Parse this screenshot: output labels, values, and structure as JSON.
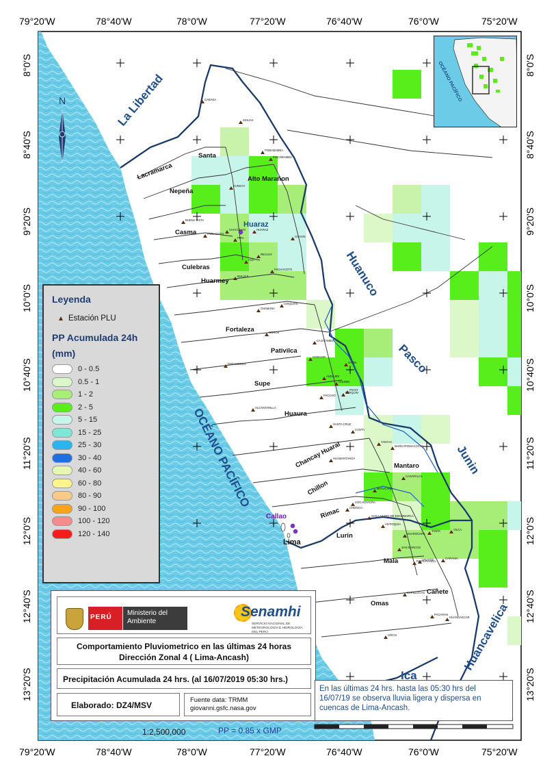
{
  "coordinates": {
    "lon_labels": [
      "79°20'W",
      "78°40'W",
      "78°0'W",
      "77°20'W",
      "76°40'W",
      "76°0'W",
      "75°20'W"
    ],
    "lat_labels": [
      "8°0'S",
      "8°40'S",
      "9°20'S",
      "10°0'S",
      "10°40'S",
      "11°20'S",
      "12°0'S",
      "12°40'S",
      "13°20'S"
    ]
  },
  "regions": {
    "la_libertad": "La Libertad",
    "huanuco": "Huanuco",
    "pasco": "Pasco",
    "junin": "Junin",
    "huancavelica": "Huancavelica",
    "ica": "Ica",
    "ocean": "OCÉANO PACÍFICO"
  },
  "north_label": "N",
  "basins": {
    "santa": "Santa",
    "lacramarca": "Lacramarca",
    "nepena": "Nepeña",
    "alto_maranon": "Alto Marañon",
    "casma": "Casma",
    "huaraz": "Huaraz",
    "culebras": "Culebras",
    "huarmey": "Huarmey",
    "fortaleza": "Fortaleza",
    "pativilca": "Pativilca",
    "supe": "Supe",
    "huaura": "Huaura",
    "chancay": "Chancay Huaral",
    "chillon": "Chillon",
    "rimac": "Rimac",
    "lurin": "Lurin",
    "mantaro": "Mantaro",
    "mala": "Mala",
    "canete": "Cañete",
    "omas": "Omas",
    "callao": "Callao",
    "lima": "Lima"
  },
  "legend": {
    "title": "Leyenda",
    "station_label": "Estación PLU",
    "pp_title_line1": "PP Acumulada 24h",
    "pp_title_line2": "(mm)",
    "classes": [
      {
        "label": "0 - 0.5",
        "color": "#ffffff"
      },
      {
        "label": "0.5 - 1",
        "color": "#dcf7c8"
      },
      {
        "label": "1 - 2",
        "color": "#a6ee78"
      },
      {
        "label": "2 - 5",
        "color": "#58ee1c"
      },
      {
        "label": "5 - 15",
        "color": "#c8f5ea"
      },
      {
        "label": "15 - 25",
        "color": "#7de8d6"
      },
      {
        "label": "25 - 30",
        "color": "#2bb4ee"
      },
      {
        "label": "30 - 40",
        "color": "#1f6fe0"
      },
      {
        "label": "40 - 60",
        "color": "#e6f7b2"
      },
      {
        "label": "60 - 80",
        "color": "#fbf58c"
      },
      {
        "label": "80 - 90",
        "color": "#f9c98a"
      },
      {
        "label": "90 - 100",
        "color": "#f7a41c"
      },
      {
        "label": "100 - 120",
        "color": "#f78a8a"
      },
      {
        "label": "120 - 140",
        "color": "#f51c1c"
      }
    ]
  },
  "info": {
    "peru": "PERÚ",
    "ministry": "Ministerio del Ambiente",
    "senamhi": "Senamhi",
    "senamhi_sub": "SERVICIO NACIONAL DE METEOROLOGÍA E HIDROLOGÍA DEL PERÚ",
    "title_line1": "Comportamiento Pluviometrico en las últimas 24 horas",
    "title_line2": "Dirección Zonal 4 ( Lima-Ancash)",
    "precip": "Precipitación Acumulada  24 hrs. (al 16/07/2019  05:30  hrs.)",
    "elaborado": "Elaborado: DZ4/MSV",
    "fuente_line1": "Fuente data: TRMM",
    "fuente_line2": "giovanni.gsfc.nasa.gov"
  },
  "note": "En las últimas 24 hrs. hasta las 05:30 hrs del  16/07/19  se observa  lluvia ligera y dispersa en  cuencas de  Lima-Ancash.",
  "scale": "1:2,500,000",
  "pp_formula": "PP = 0.85 x GMP",
  "inset": {
    "ocean_label": "OCÉANO PACÍFICO"
  },
  "stations": [
    "CABANA",
    "SIHUAS",
    "POMABAMBA",
    "PISCOBAMBA",
    "YUNGAY",
    "BUENA VISTA",
    "PARIACOTO",
    "CHACCHAN",
    "PIRA",
    "HUARAZ",
    "CHAVIN",
    "RECUAY",
    "AIJA",
    "PACHACOTO",
    "MALVAS",
    "CHAMANA",
    "OCROS",
    "CHIQUIAN",
    "CAJATAMBO",
    "OYON",
    "GORGOR",
    "ANDAJES",
    "PARQUIN",
    "PICOY",
    "PACCHO",
    "CHURIN",
    "PARAMONGA",
    "ALCANTARILLA",
    "SANTA CRUZ",
    "HUAMANTANGA",
    "CANTA",
    "YANTAC",
    "MARCAPOMACOCHA",
    "CASAPALCA",
    "CHOSICA",
    "MATUCANA",
    "SAN LAZARO DE ESCOMARCA",
    "ANTIOQUIA",
    "HUAROCHIRI",
    "TANTA",
    "VILCA",
    "YAUYOS",
    "HUANGASCAR",
    "PACARAN",
    "SOCSI",
    "CAPILLUCAS",
    "COCACHACRA",
    "RAYRAYANGA",
    "CARANIA",
    "SAN MARCOS"
  ]
}
